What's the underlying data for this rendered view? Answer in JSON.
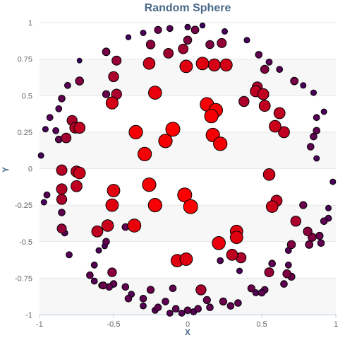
{
  "chart_data": {
    "type": "scatter",
    "title": "Random Sphere",
    "xlabel": "X",
    "ylabel": "Y",
    "xlim": [
      -1,
      1
    ],
    "ylim": [
      -1,
      1
    ],
    "x_ticks": [
      "-1",
      "-0.5",
      "0",
      "0.5",
      "1"
    ],
    "y_ticks": [
      "1",
      "0.75",
      "0.5",
      "0.25",
      "0",
      "-0.25",
      "-0.5",
      "-0.75",
      "-1"
    ],
    "grid": true,
    "legend": "none",
    "color_scale": {
      "back": "#2a006b",
      "front": "#ff0000",
      "encodes": "z",
      "size_encodes": "z"
    },
    "points": [
      {
        "x": 0.0,
        "y": 0.97,
        "z": 0.15
      },
      {
        "x": -0.12,
        "y": 0.96,
        "z": 0.2
      },
      {
        "x": 0.1,
        "y": 0.98,
        "z": 0.1
      },
      {
        "x": -0.3,
        "y": 0.93,
        "z": 0.15
      },
      {
        "x": 0.25,
        "y": 0.94,
        "z": 0.15
      },
      {
        "x": -0.4,
        "y": 0.9,
        "z": 0.1
      },
      {
        "x": 0.4,
        "y": 0.88,
        "z": 0.15
      },
      {
        "x": -0.25,
        "y": 0.85,
        "z": 0.45
      },
      {
        "x": 0.0,
        "y": 0.88,
        "z": 0.4
      },
      {
        "x": -0.2,
        "y": 0.95,
        "z": 0.3
      },
      {
        "x": 0.05,
        "y": 0.95,
        "z": 0.35
      },
      {
        "x": 0.15,
        "y": 0.85,
        "z": 0.4
      },
      {
        "x": -0.55,
        "y": 0.8,
        "z": 0.35
      },
      {
        "x": -0.13,
        "y": 0.79,
        "z": 0.55
      },
      {
        "x": -0.03,
        "y": 0.82,
        "z": 0.55
      },
      {
        "x": 0.23,
        "y": 0.86,
        "z": 0.5
      },
      {
        "x": 0.48,
        "y": 0.78,
        "z": 0.25
      },
      {
        "x": 0.55,
        "y": 0.73,
        "z": 0.2
      },
      {
        "x": -0.73,
        "y": 0.74,
        "z": 0.05
      },
      {
        "x": -0.48,
        "y": 0.74,
        "z": 0.5
      },
      {
        "x": -0.26,
        "y": 0.72,
        "z": 0.75
      },
      {
        "x": -0.01,
        "y": 0.7,
        "z": 0.85
      },
      {
        "x": 0.1,
        "y": 0.72,
        "z": 0.85
      },
      {
        "x": 0.18,
        "y": 0.71,
        "z": 0.8
      },
      {
        "x": 0.26,
        "y": 0.71,
        "z": 0.8
      },
      {
        "x": 0.52,
        "y": 0.68,
        "z": 0.4
      },
      {
        "x": 0.62,
        "y": 0.68,
        "z": 0.2
      },
      {
        "x": -0.81,
        "y": 0.57,
        "z": 0.2
      },
      {
        "x": -0.73,
        "y": 0.6,
        "z": 0.4
      },
      {
        "x": -0.5,
        "y": 0.63,
        "z": 0.6
      },
      {
        "x": -0.48,
        "y": 0.51,
        "z": 0.6
      },
      {
        "x": -0.22,
        "y": 0.52,
        "z": 0.9
      },
      {
        "x": 0.47,
        "y": 0.56,
        "z": 0.6
      },
      {
        "x": 0.46,
        "y": 0.53,
        "z": 0.7
      },
      {
        "x": 0.51,
        "y": 0.51,
        "z": 0.7
      },
      {
        "x": 0.72,
        "y": 0.6,
        "z": 0.35
      },
      {
        "x": 0.78,
        "y": 0.57,
        "z": 0.15
      },
      {
        "x": 0.85,
        "y": 0.52,
        "z": 0.15
      },
      {
        "x": -0.85,
        "y": 0.48,
        "z": 0.25
      },
      {
        "x": -0.87,
        "y": 0.41,
        "z": 0.2
      },
      {
        "x": -0.55,
        "y": 0.51,
        "z": 0.3
      },
      {
        "x": -0.51,
        "y": 0.45,
        "z": 0.8
      },
      {
        "x": 0.38,
        "y": 0.46,
        "z": 0.6
      },
      {
        "x": 0.52,
        "y": 0.43,
        "z": 0.7
      },
      {
        "x": 0.13,
        "y": 0.44,
        "z": 0.95
      },
      {
        "x": 0.19,
        "y": 0.4,
        "z": 0.95
      },
      {
        "x": 0.62,
        "y": 0.38,
        "z": 0.7
      },
      {
        "x": 0.87,
        "y": 0.35,
        "z": 0.2
      },
      {
        "x": 0.92,
        "y": 0.39,
        "z": 0.15
      },
      {
        "x": -0.93,
        "y": 0.35,
        "z": 0.2
      },
      {
        "x": -0.96,
        "y": 0.27,
        "z": 0.15
      },
      {
        "x": -0.89,
        "y": 0.26,
        "z": 0.2
      },
      {
        "x": -0.78,
        "y": 0.33,
        "z": 0.6
      },
      {
        "x": -0.76,
        "y": 0.28,
        "z": 0.65
      },
      {
        "x": -0.73,
        "y": 0.28,
        "z": 0.7
      },
      {
        "x": 0.16,
        "y": 0.36,
        "z": 0.95
      },
      {
        "x": 0.59,
        "y": 0.29,
        "z": 0.75
      },
      {
        "x": 0.65,
        "y": 0.25,
        "z": 0.7
      },
      {
        "x": 0.87,
        "y": 0.26,
        "z": 0.25
      },
      {
        "x": -0.87,
        "y": 0.2,
        "z": 0.25
      },
      {
        "x": -0.82,
        "y": 0.21,
        "z": 0.55
      },
      {
        "x": -0.35,
        "y": 0.25,
        "z": 0.95
      },
      {
        "x": -0.1,
        "y": 0.27,
        "z": 1.0
      },
      {
        "x": -0.15,
        "y": 0.19,
        "z": 0.95
      },
      {
        "x": 0.17,
        "y": 0.23,
        "z": 0.95
      },
      {
        "x": 0.22,
        "y": 0.17,
        "z": 0.95
      },
      {
        "x": 0.85,
        "y": 0.22,
        "z": 0.25
      },
      {
        "x": 0.83,
        "y": 0.15,
        "z": 0.25
      },
      {
        "x": 0.87,
        "y": 0.07,
        "z": 0.15
      },
      {
        "x": -0.99,
        "y": 0.09,
        "z": 0.15
      },
      {
        "x": -0.29,
        "y": 0.1,
        "z": 0.95
      },
      {
        "x": -0.85,
        "y": -0.01,
        "z": 0.65
      },
      {
        "x": -0.75,
        "y": -0.02,
        "z": 0.7
      },
      {
        "x": -0.73,
        "y": -0.03,
        "z": 0.75
      },
      {
        "x": 0.55,
        "y": -0.04,
        "z": 0.75
      },
      {
        "x": 0.98,
        "y": -0.09,
        "z": 0.15
      },
      {
        "x": -0.85,
        "y": -0.14,
        "z": 0.65
      },
      {
        "x": -0.75,
        "y": -0.12,
        "z": 0.7
      },
      {
        "x": -0.26,
        "y": -0.11,
        "z": 0.95
      },
      {
        "x": -0.5,
        "y": -0.15,
        "z": 0.85
      },
      {
        "x": -0.02,
        "y": -0.18,
        "z": 1.0
      },
      {
        "x": -0.95,
        "y": -0.18,
        "z": 0.2
      },
      {
        "x": -0.85,
        "y": -0.21,
        "z": 0.6
      },
      {
        "x": -0.51,
        "y": -0.25,
        "z": 0.85
      },
      {
        "x": -0.22,
        "y": -0.25,
        "z": 0.95
      },
      {
        "x": 0.02,
        "y": -0.26,
        "z": 1.0
      },
      {
        "x": 0.57,
        "y": -0.26,
        "z": 0.75
      },
      {
        "x": 0.6,
        "y": -0.22,
        "z": 0.7
      },
      {
        "x": 0.78,
        "y": -0.25,
        "z": 0.3
      },
      {
        "x": 0.95,
        "y": -0.27,
        "z": 0.15
      },
      {
        "x": -0.97,
        "y": -0.23,
        "z": 0.15
      },
      {
        "x": -0.85,
        "y": -0.3,
        "z": 0.25
      },
      {
        "x": -0.42,
        "y": -0.4,
        "z": 0.25
      },
      {
        "x": -0.54,
        "y": -0.39,
        "z": 0.75
      },
      {
        "x": -0.61,
        "y": -0.43,
        "z": 0.7
      },
      {
        "x": -0.36,
        "y": -0.39,
        "z": 0.9
      },
      {
        "x": 0.33,
        "y": -0.43,
        "z": 0.85
      },
      {
        "x": 0.33,
        "y": -0.47,
        "z": 0.85
      },
      {
        "x": 0.73,
        "y": -0.36,
        "z": 0.6
      },
      {
        "x": 0.92,
        "y": -0.36,
        "z": 0.25
      },
      {
        "x": 0.95,
        "y": -0.34,
        "z": 0.2
      },
      {
        "x": -0.85,
        "y": -0.41,
        "z": 0.5
      },
      {
        "x": -0.83,
        "y": -0.44,
        "z": 0.2
      },
      {
        "x": 0.81,
        "y": -0.43,
        "z": 0.45
      },
      {
        "x": 0.84,
        "y": -0.47,
        "z": 0.4
      },
      {
        "x": 0.89,
        "y": -0.46,
        "z": 0.3
      },
      {
        "x": 0.21,
        "y": -0.51,
        "z": 0.9
      },
      {
        "x": -0.55,
        "y": -0.5,
        "z": 0.25
      },
      {
        "x": -0.56,
        "y": -0.53,
        "z": 0.15
      },
      {
        "x": 0.82,
        "y": -0.52,
        "z": 0.35
      },
      {
        "x": 0.9,
        "y": -0.51,
        "z": 0.25
      },
      {
        "x": -0.8,
        "y": -0.59,
        "z": 0.2
      },
      {
        "x": 0.7,
        "y": -0.52,
        "z": 0.4
      },
      {
        "x": 0.68,
        "y": -0.56,
        "z": 0.2
      },
      {
        "x": 0.3,
        "y": -0.59,
        "z": 0.7
      },
      {
        "x": 0.36,
        "y": -0.61,
        "z": 0.6
      },
      {
        "x": -0.6,
        "y": -0.56,
        "z": 0.15
      },
      {
        "x": -0.07,
        "y": -0.63,
        "z": 0.85
      },
      {
        "x": -0.01,
        "y": -0.62,
        "z": 0.85
      },
      {
        "x": 0.22,
        "y": -0.63,
        "z": 0.2
      },
      {
        "x": -0.63,
        "y": -0.66,
        "z": 0.2
      },
      {
        "x": 0.57,
        "y": -0.65,
        "z": 0.25
      },
      {
        "x": 0.68,
        "y": -0.66,
        "z": 0.2
      },
      {
        "x": 0.35,
        "y": -0.7,
        "z": 0.15
      },
      {
        "x": -0.66,
        "y": -0.73,
        "z": 0.25
      },
      {
        "x": -0.51,
        "y": -0.71,
        "z": 0.45
      },
      {
        "x": 0.55,
        "y": -0.71,
        "z": 0.5
      },
      {
        "x": 0.67,
        "y": -0.72,
        "z": 0.4
      },
      {
        "x": 0.7,
        "y": -0.74,
        "z": 0.3
      },
      {
        "x": -0.63,
        "y": -0.77,
        "z": 0.2
      },
      {
        "x": -0.57,
        "y": -0.8,
        "z": 0.3
      },
      {
        "x": -0.5,
        "y": -0.79,
        "z": 0.25
      },
      {
        "x": 0.65,
        "y": -0.79,
        "z": 0.25
      },
      {
        "x": -0.58,
        "y": -0.8,
        "z": 0.2
      },
      {
        "x": -0.53,
        "y": -0.81,
        "z": 0.25
      },
      {
        "x": -0.42,
        "y": -0.81,
        "z": 0.25
      },
      {
        "x": -0.25,
        "y": -0.83,
        "z": 0.3
      },
      {
        "x": -0.1,
        "y": -0.82,
        "z": 0.25
      },
      {
        "x": 0.09,
        "y": -0.83,
        "z": 0.6
      },
      {
        "x": 0.43,
        "y": -0.82,
        "z": 0.3
      },
      {
        "x": 0.52,
        "y": -0.83,
        "z": 0.25
      },
      {
        "x": -0.38,
        "y": -0.86,
        "z": 0.2
      },
      {
        "x": 0.46,
        "y": -0.85,
        "z": 0.2
      },
      {
        "x": 0.5,
        "y": -0.85,
        "z": 0.25
      },
      {
        "x": -0.4,
        "y": -0.89,
        "z": 0.25
      },
      {
        "x": -0.3,
        "y": -0.89,
        "z": 0.25
      },
      {
        "x": -0.15,
        "y": -0.91,
        "z": 0.25
      },
      {
        "x": 0.13,
        "y": -0.9,
        "z": 0.3
      },
      {
        "x": 0.24,
        "y": -0.91,
        "z": 0.3
      },
      {
        "x": 0.34,
        "y": -0.92,
        "z": 0.25
      },
      {
        "x": -0.3,
        "y": -0.94,
        "z": 0.2
      },
      {
        "x": -0.2,
        "y": -0.95,
        "z": 0.25
      },
      {
        "x": -0.08,
        "y": -0.96,
        "z": 0.25
      },
      {
        "x": 0.0,
        "y": -0.97,
        "z": 0.25
      },
      {
        "x": 0.07,
        "y": -0.96,
        "z": 0.25
      },
      {
        "x": 0.15,
        "y": -0.95,
        "z": 0.25
      },
      {
        "x": 0.29,
        "y": -0.94,
        "z": 0.25
      },
      {
        "x": -0.12,
        "y": -0.99,
        "z": 0.2
      },
      {
        "x": -0.04,
        "y": -0.99,
        "z": 0.2
      },
      {
        "x": 0.04,
        "y": -0.98,
        "z": 0.2
      },
      {
        "x": -0.22,
        "y": -0.97,
        "z": 0.2
      }
    ]
  }
}
